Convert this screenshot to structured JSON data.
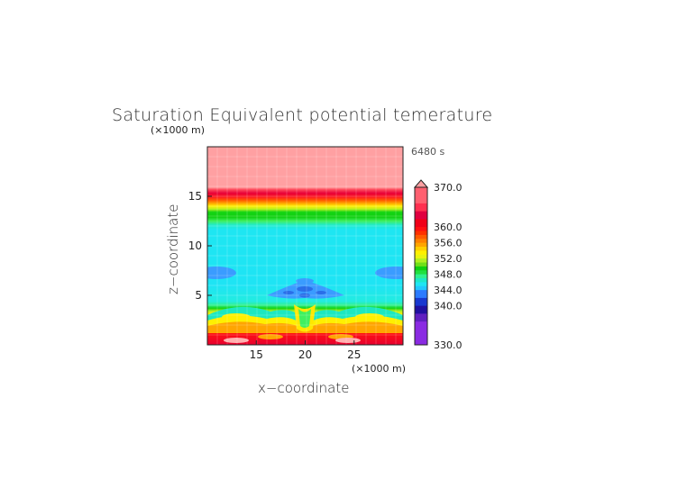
{
  "chart_data": {
    "type": "heatmap",
    "title": "Saturation Equivalent potential temerature",
    "time_label": "6480 s",
    "xlabel": "x−coordinate",
    "ylabel": "z−coordinate",
    "x_unit": "(×1000 m)",
    "y_unit": "(×1000 m)",
    "xlim": [
      10,
      30
    ],
    "ylim": [
      0,
      20
    ],
    "x_ticks": [
      15,
      20,
      25
    ],
    "y_ticks": [
      5,
      10,
      15
    ],
    "colorbar": {
      "min": 330,
      "max": 370,
      "extend": "max",
      "tick_labels": [
        "370.0",
        "360.0",
        "356.0",
        "352.0",
        "348.0",
        "344.0",
        "340.0",
        "330.0"
      ],
      "levels": [
        330,
        336,
        338,
        340,
        342,
        344,
        345,
        346,
        347,
        348,
        349,
        350,
        351,
        352,
        353,
        354,
        355,
        356,
        357,
        358,
        359,
        360,
        362,
        364,
        366,
        370
      ]
    },
    "colors": {
      "purple": "#8a2be2",
      "navy": "#1515b0",
      "blue": "#2c7bff",
      "mid_blue": "#3fa0ff",
      "cyan": "#1fe0f5",
      "teal": "#1ce8c0",
      "green_lt": "#3cf070",
      "green": "#10d010",
      "yellow_green": "#b0f020",
      "yellow": "#fff000",
      "orange": "#ffa500",
      "red_orange": "#ff4500",
      "red": "#ff1010",
      "crimson": "#e00040",
      "pink": "#ff9ea0"
    },
    "description_bands": [
      {
        "z_from": 15.5,
        "z_to": 20,
        "value": 370
      },
      {
        "z_from": 14.5,
        "z_to": 15.5,
        "value": 362
      },
      {
        "z_from": 13.0,
        "z_to": 14.5,
        "value": 356
      },
      {
        "z_from": 11.0,
        "z_to": 13.0,
        "value": 348
      },
      {
        "z_from": 3.5,
        "z_to": 11.0,
        "value": 344
      },
      {
        "z_from": 2.0,
        "z_to": 3.5,
        "value": 352
      },
      {
        "z_from": 0.8,
        "z_to": 2.0,
        "value": 360
      },
      {
        "z_from": 0,
        "z_to": 0.8,
        "value": 362
      }
    ]
  }
}
